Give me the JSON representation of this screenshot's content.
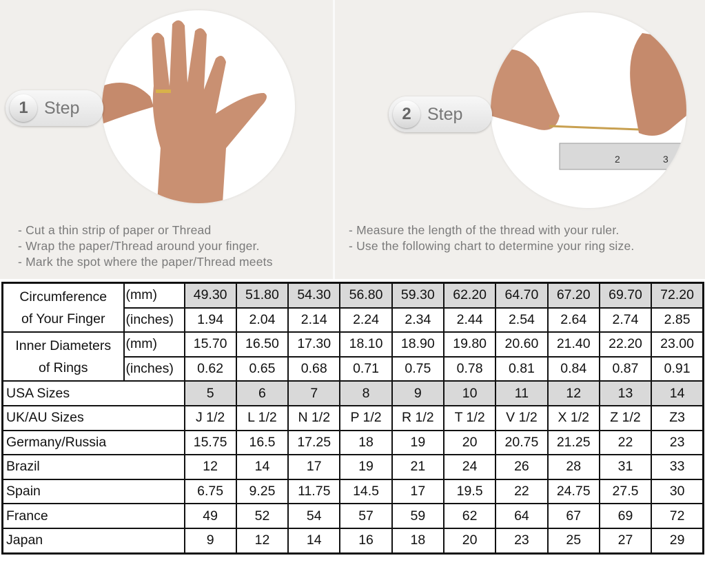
{
  "step1": {
    "number": "1",
    "label": "Step",
    "instructions": [
      "- Cut a thin strip of paper or Thread",
      "- Wrap the paper/Thread around your finger.",
      "- Mark the spot where the paper/Thread meets"
    ]
  },
  "step2": {
    "number": "2",
    "label": "Step",
    "instructions": [
      "- Measure the length of the thread with your ruler.",
      "- Use the following chart to determine your ring size."
    ]
  },
  "table": {
    "circumference": {
      "label_line1": "Circumference",
      "label_line2": "of Your Finger",
      "mm_label": "(mm)",
      "inches_label": "(inches)",
      "mm": [
        "49.30",
        "51.80",
        "54.30",
        "56.80",
        "59.30",
        "62.20",
        "64.70",
        "67.20",
        "69.70",
        "72.20"
      ],
      "inches": [
        "1.94",
        "2.04",
        "2.14",
        "2.24",
        "2.34",
        "2.44",
        "2.54",
        "2.64",
        "2.74",
        "2.85"
      ]
    },
    "diameter": {
      "label_line1": "Inner Diameters",
      "label_line2": "of Rings",
      "mm_label": "(mm)",
      "inches_label": "(inches)",
      "mm": [
        "15.70",
        "16.50",
        "17.30",
        "18.10",
        "18.90",
        "19.80",
        "20.60",
        "21.40",
        "22.20",
        "23.00"
      ],
      "inches": [
        "0.62",
        "0.65",
        "0.68",
        "0.71",
        "0.75",
        "0.78",
        "0.81",
        "0.84",
        "0.87",
        "0.91"
      ]
    },
    "rows": [
      {
        "label": "USA Sizes",
        "values": [
          "5",
          "6",
          "7",
          "8",
          "9",
          "10",
          "11",
          "12",
          "13",
          "14"
        ]
      },
      {
        "label": "UK/AU Sizes",
        "values": [
          "J 1/2",
          "L 1/2",
          "N 1/2",
          "P 1/2",
          "R 1/2",
          "T 1/2",
          "V 1/2",
          "X 1/2",
          "Z 1/2",
          "Z3"
        ]
      },
      {
        "label": "Germany/Russia",
        "values": [
          "15.75",
          "16.5",
          "17.25",
          "18",
          "19",
          "20",
          "20.75",
          "21.25",
          "22",
          "23"
        ]
      },
      {
        "label": "Brazil",
        "values": [
          "12",
          "14",
          "17",
          "19",
          "21",
          "24",
          "26",
          "28",
          "31",
          "33"
        ]
      },
      {
        "label": "Spain",
        "values": [
          "6.75",
          "9.25",
          "11.75",
          "14.5",
          "17",
          "19.5",
          "22",
          "24.75",
          "27.5",
          "30"
        ]
      },
      {
        "label": "France",
        "values": [
          "49",
          "52",
          "54",
          "57",
          "59",
          "62",
          "64",
          "67",
          "69",
          "72"
        ]
      },
      {
        "label": "Japan",
        "values": [
          "9",
          "12",
          "14",
          "16",
          "18",
          "20",
          "23",
          "25",
          "27",
          "29"
        ]
      }
    ],
    "shade_color": "#d9d9d9"
  }
}
